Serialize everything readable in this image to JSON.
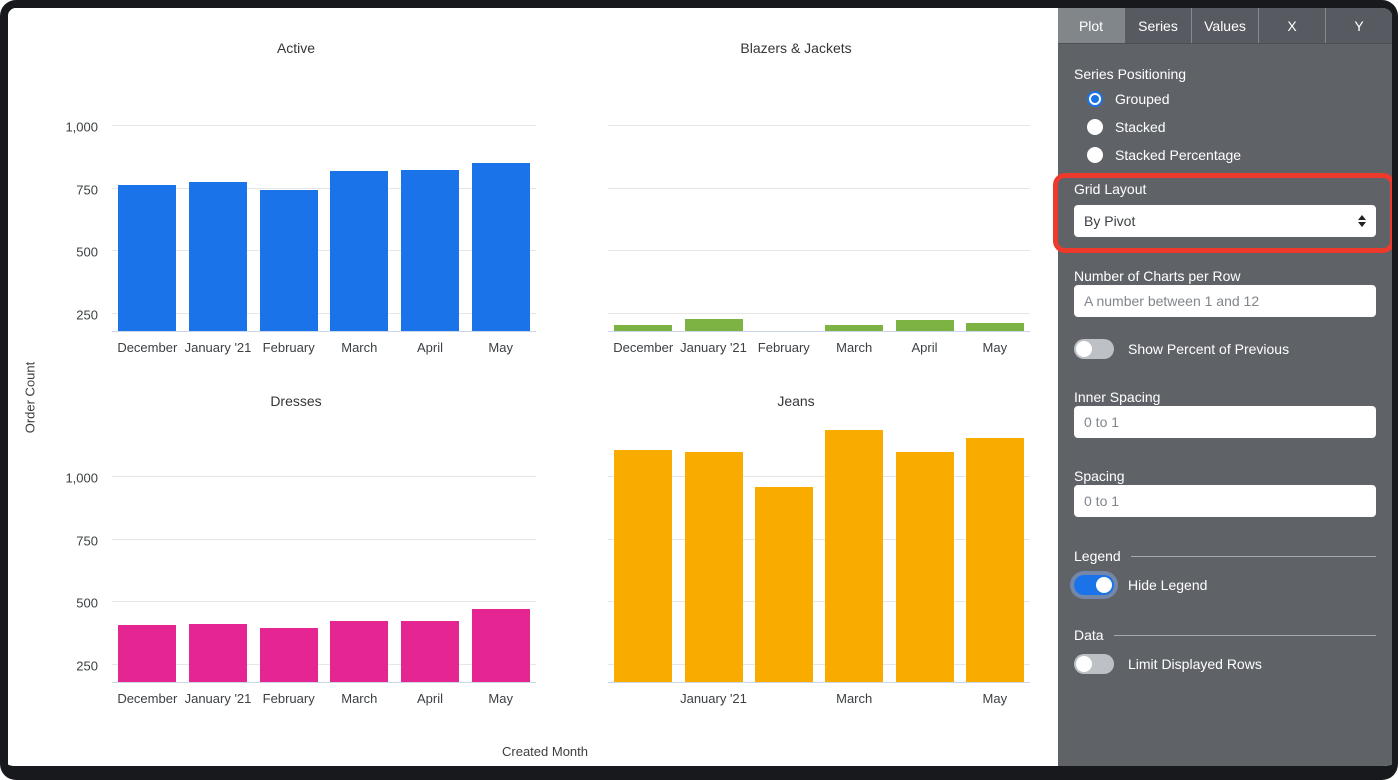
{
  "sidebar": {
    "tabs": [
      {
        "label": "Plot",
        "active": true
      },
      {
        "label": "Series",
        "active": false
      },
      {
        "label": "Values",
        "active": false
      },
      {
        "label": "X",
        "active": false
      },
      {
        "label": "Y",
        "active": false
      }
    ],
    "series_positioning": {
      "label": "Series Positioning",
      "options": [
        {
          "label": "Grouped",
          "selected": true
        },
        {
          "label": "Stacked",
          "selected": false
        },
        {
          "label": "Stacked Percentage",
          "selected": false
        }
      ]
    },
    "grid_layout": {
      "label": "Grid Layout",
      "value": "By Pivot"
    },
    "charts_per_row": {
      "label": "Number of Charts per Row",
      "value": "",
      "placeholder": "A number between 1 and 12"
    },
    "show_percent_of_previous": {
      "label": "Show Percent of Previous",
      "on": false
    },
    "inner_spacing": {
      "label": "Inner Spacing",
      "value": "",
      "placeholder": "0 to 1"
    },
    "spacing": {
      "label": "Spacing",
      "value": "",
      "placeholder": "0 to 1"
    },
    "legend_section": {
      "label": "Legend"
    },
    "hide_legend": {
      "label": "Hide Legend",
      "on": true
    },
    "data_section": {
      "label": "Data"
    },
    "limit_displayed_rows": {
      "label": "Limit Displayed Rows",
      "on": false
    }
  },
  "annotation": {
    "shape": "red-rounded-rectangle",
    "highlights": "Grid Layout select",
    "color": "#ee392d"
  },
  "colors": {
    "sidebar_bg": "#5f6368",
    "accent_blue": "#1a73e8",
    "bar_blue": "#1a73e8",
    "bar_green": "#7cb342",
    "bar_pink": "#e52592",
    "bar_orange": "#f9ab00"
  },
  "chart_data": {
    "type": "bar",
    "layout": "2x2 small multiples (grid by pivot)",
    "categories": [
      "December",
      "January '21",
      "February",
      "March",
      "April",
      "May"
    ],
    "xlabel": "Created Month",
    "ylabel": "Order Count",
    "y_ticks": [
      250,
      500,
      750,
      1000
    ],
    "y_tick_labels": [
      "250",
      "500",
      "750",
      "1,000"
    ],
    "ylim": [
      180,
      1200
    ],
    "grid": true,
    "legend_position": "hidden",
    "charts": [
      {
        "title": "Active",
        "color": "#1a73e8",
        "values": [
          765,
          778,
          744,
          822,
          826,
          852
        ],
        "x_tick_labels": [
          "December",
          "January '21",
          "February",
          "March",
          "April",
          "May"
        ],
        "show_y_ticks": true
      },
      {
        "title": "Blazers & Jackets",
        "color": "#7cb342",
        "values": [
          204,
          227,
          180,
          203,
          226,
          211
        ],
        "x_tick_labels": [
          "December",
          "January '21",
          "February",
          "March",
          "April",
          "May"
        ],
        "show_y_ticks": false
      },
      {
        "title": "Dresses",
        "color": "#e52592",
        "values": [
          408,
          414,
          398,
          424,
          424,
          472
        ],
        "x_tick_labels": [
          "December",
          "January '21",
          "February",
          "March",
          "April",
          "May"
        ],
        "show_y_ticks": true
      },
      {
        "title": "Jeans",
        "color": "#f9ab00",
        "values": [
          1110,
          1100,
          960,
          1187,
          1101,
          1157
        ],
        "x_tick_labels": [
          "",
          "January '21",
          "",
          "March",
          "",
          "May"
        ],
        "show_y_ticks": false
      }
    ]
  }
}
